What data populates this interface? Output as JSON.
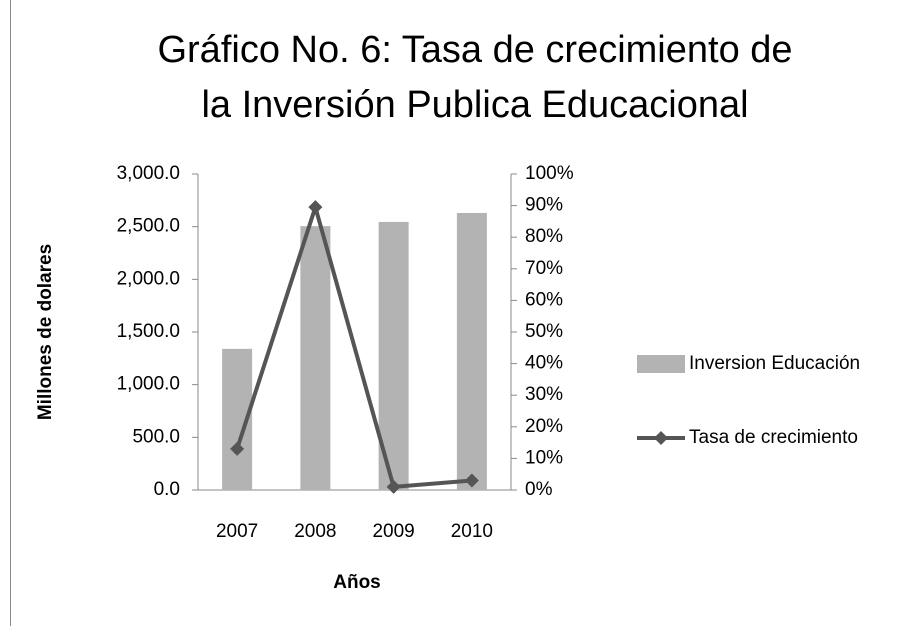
{
  "chart_data": {
    "type": "bar",
    "title": [
      "Gráfico No. 6: Tasa de crecimiento de",
      "la Inversión Publica Educacional"
    ],
    "x_label": "Años",
    "y_label": "Millones de dolares",
    "categories": [
      "2007",
      "2008",
      "2009",
      "2010"
    ],
    "series": [
      {
        "name": "Inversion Educación",
        "type": "bar",
        "color": "#b3b3b3",
        "values": [
          1340,
          2505,
          2545,
          2630
        ]
      },
      {
        "name": "Tasa de crecimiento",
        "type": "line",
        "axis": "y2",
        "color": "#555555",
        "values": [
          13,
          89.5,
          1,
          3
        ]
      }
    ],
    "ylim": [
      0,
      3000
    ],
    "yticks": [
      {
        "value": 0,
        "label": "0.0"
      },
      {
        "value": 500,
        "label": "500.0"
      },
      {
        "value": 1000,
        "label": "1,000.0"
      },
      {
        "value": 1500,
        "label": "1,500.0"
      },
      {
        "value": 2000,
        "label": "2,000.0"
      },
      {
        "value": 2500,
        "label": "2,500.0"
      },
      {
        "value": 3000,
        "label": "3,000.0"
      }
    ],
    "y2lim": [
      0,
      100
    ],
    "y2ticks": [
      {
        "value": 0,
        "label": "0%"
      },
      {
        "value": 10,
        "label": "10%"
      },
      {
        "value": 20,
        "label": "20%"
      },
      {
        "value": 30,
        "label": "30%"
      },
      {
        "value": 40,
        "label": "40%"
      },
      {
        "value": 50,
        "label": "50%"
      },
      {
        "value": 60,
        "label": "60%"
      },
      {
        "value": 70,
        "label": "70%"
      },
      {
        "value": 80,
        "label": "80%"
      },
      {
        "value": 90,
        "label": "90%"
      },
      {
        "value": 100,
        "label": "100%"
      }
    ],
    "legend": "right"
  }
}
